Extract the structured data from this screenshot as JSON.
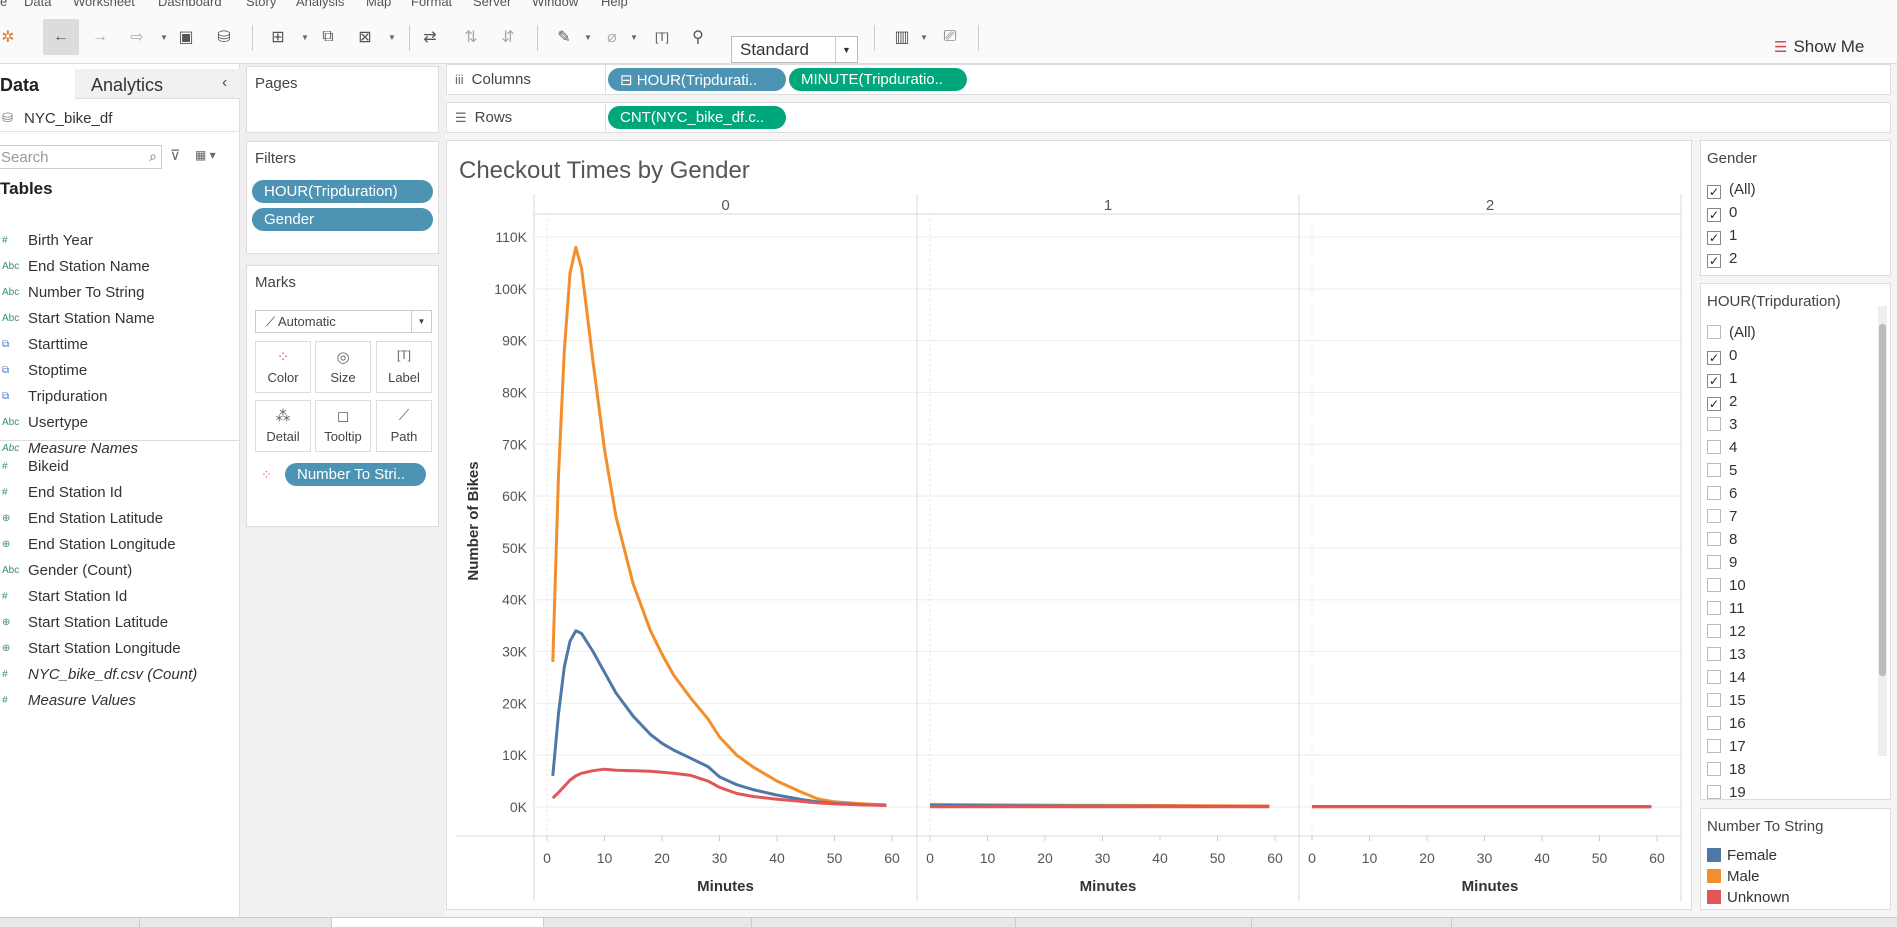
{
  "menu": [
    "e",
    "Data",
    "Worksheet",
    "Dashboard",
    "Story",
    "Analysis",
    "Map",
    "Format",
    "Server",
    "Window",
    "Help"
  ],
  "toolbar": {
    "view_select": "Standard",
    "show_me": "Show Me"
  },
  "data_pane": {
    "tab_data": "Data",
    "tab_analytics": "Analytics",
    "datasource": "NYC_bike_df",
    "search_placeholder": "Search",
    "tables_heading": "Tables",
    "dimensions": [
      {
        "icon": "#",
        "name": "Birth Year"
      },
      {
        "icon": "Abc",
        "name": "End Station Name"
      },
      {
        "icon": "Abc",
        "name": "Number To String"
      },
      {
        "icon": "Abc",
        "name": "Start Station Name"
      },
      {
        "icon": "⧉",
        "name": "Starttime"
      },
      {
        "icon": "⧉",
        "name": "Stoptime"
      },
      {
        "icon": "⧉",
        "name": "Tripduration"
      },
      {
        "icon": "Abc",
        "name": "Usertype"
      },
      {
        "icon": "Abc",
        "name": "Measure Names"
      }
    ],
    "measures": [
      {
        "icon": "#",
        "name": "Bikeid"
      },
      {
        "icon": "#",
        "name": "End Station Id"
      },
      {
        "icon": "⊕",
        "name": "End Station Latitude"
      },
      {
        "icon": "⊕",
        "name": "End Station Longitude"
      },
      {
        "icon": "Abc",
        "name": "Gender (Count)"
      },
      {
        "icon": "#",
        "name": "Start Station Id"
      },
      {
        "icon": "⊕",
        "name": "Start Station Latitude"
      },
      {
        "icon": "⊕",
        "name": "Start Station Longitude"
      },
      {
        "icon": "#",
        "name": "NYC_bike_df.csv (Count)"
      },
      {
        "icon": "#",
        "name": "Measure Values"
      }
    ]
  },
  "pages": {
    "title": "Pages"
  },
  "filters": {
    "title": "Filters",
    "pills": [
      "HOUR(Tripduration)",
      "Gender"
    ]
  },
  "marks": {
    "title": "Marks",
    "type": "Automatic",
    "buttons": [
      "Color",
      "Size",
      "Label",
      "Detail",
      "Tooltip",
      "Path"
    ],
    "color_pill": "Number To Stri.."
  },
  "columns_shelf": {
    "label": "Columns",
    "pills": [
      "HOUR(Tripdurati..",
      "MINUTE(Tripduratio.."
    ]
  },
  "rows_shelf": {
    "label": "Rows",
    "pills": [
      "CNT(NYC_bike_df.c.."
    ]
  },
  "gender_legend": {
    "title": "Gender",
    "items": [
      "(All)",
      "0",
      "1",
      "2"
    ]
  },
  "hour_legend": {
    "title": "HOUR(Tripduration)",
    "items": [
      "(All)",
      "0",
      "1",
      "2",
      "3",
      "4",
      "5",
      "6",
      "7",
      "8",
      "9",
      "10",
      "11",
      "12",
      "13",
      "14",
      "15",
      "16",
      "17",
      "18",
      "19"
    ],
    "checked": [
      false,
      true,
      true,
      true,
      false,
      false,
      false,
      false,
      false,
      false,
      false,
      false,
      false,
      false,
      false,
      false,
      false,
      false,
      false,
      false,
      false
    ]
  },
  "color_legend": {
    "title": "Number To String",
    "items": [
      {
        "label": "Female",
        "color": "#4e79a7"
      },
      {
        "label": "Male",
        "color": "#f28e2b"
      },
      {
        "label": "Unknown",
        "color": "#e15759"
      }
    ]
  },
  "chart_data": {
    "type": "line",
    "title": "Checkout Times by Gender",
    "ylabel": "Number of Bikes",
    "xlabel": "Minutes",
    "panels": [
      "0",
      "1",
      "2"
    ],
    "ylim": [
      0,
      110000
    ],
    "yticks": [
      "110K",
      "100K",
      "90K",
      "80K",
      "70K",
      "60K",
      "50K",
      "40K",
      "30K",
      "20K",
      "10K",
      "0K"
    ],
    "xticks": [
      "0",
      "10",
      "20",
      "30",
      "40",
      "50",
      "60"
    ],
    "x": [
      1,
      2,
      3,
      4,
      5,
      6,
      8,
      10,
      12,
      15,
      18,
      20,
      22,
      25,
      28,
      30,
      33,
      36,
      40,
      44,
      47,
      50,
      55,
      59
    ],
    "series": [
      {
        "name": "Male",
        "color": "#f28e2b",
        "panel0": [
          28000,
          64000,
          88000,
          103000,
          108000,
          104000,
          86000,
          69000,
          56000,
          43000,
          34000,
          29500,
          25500,
          21000,
          17000,
          13500,
          10000,
          7600,
          5000,
          3000,
          1600,
          1000,
          600,
          400
        ],
        "panel1": [
          500,
          400,
          350,
          300,
          250,
          200
        ],
        "panel2": [
          100,
          100,
          100,
          100,
          100,
          100
        ]
      },
      {
        "name": "Female",
        "color": "#4e79a7",
        "panel0": [
          6000,
          18000,
          27000,
          32000,
          34000,
          33500,
          30000,
          26000,
          22000,
          17500,
          14000,
          12300,
          11000,
          9400,
          7800,
          5800,
          4300,
          3300,
          2300,
          1500,
          1000,
          700,
          450,
          300
        ],
        "panel1": [
          300,
          250,
          200,
          150,
          100,
          100
        ],
        "panel2": [
          100,
          100,
          80,
          80,
          80,
          80
        ]
      },
      {
        "name": "Unknown",
        "color": "#e15759",
        "panel0": [
          1700,
          2800,
          4000,
          5200,
          6000,
          6500,
          7000,
          7300,
          7100,
          7000,
          6900,
          6700,
          6500,
          6100,
          5000,
          3800,
          2600,
          2000,
          1500,
          1100,
          800,
          600,
          400,
          300
        ],
        "panel1": [
          50,
          50,
          40,
          40,
          30,
          30
        ],
        "panel2": [
          20,
          20,
          20,
          20,
          20,
          20
        ]
      }
    ]
  }
}
